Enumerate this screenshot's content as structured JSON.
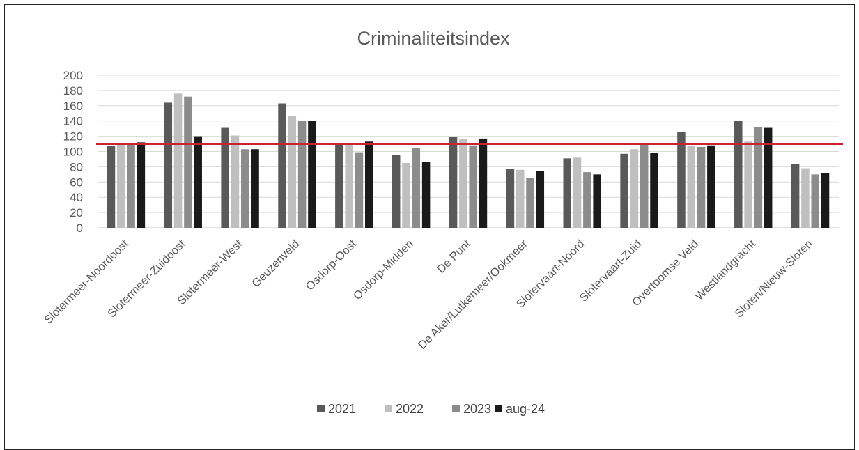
{
  "chart_data": {
    "type": "bar",
    "title": "Criminaliteitsindex",
    "xlabel": "",
    "ylabel": "",
    "ylim": [
      0,
      200
    ],
    "yticks": [
      0,
      20,
      40,
      60,
      80,
      100,
      120,
      140,
      160,
      180,
      200
    ],
    "grid": true,
    "legend_position": "bottom",
    "categories": [
      "Slotermeer-Noordoost",
      "Slotermeer-Zuidoost",
      "Slotermeer-West",
      "Geuzenveld",
      "Osdorp-Oost",
      "Osdorp-Midden",
      "De Punt",
      "De Aker/Lutkemeer/Ookmeer",
      "Slotervaart-Noord",
      "Slotervaart-Zuid",
      "Overtoomse Veld",
      "Westlandgracht",
      "Sloten/Nieuw-Sloten"
    ],
    "series": [
      {
        "name": "2021",
        "color": "#595959",
        "values": [
          107,
          164,
          131,
          163,
          109,
          95,
          119,
          77,
          91,
          97,
          126,
          140,
          84
        ]
      },
      {
        "name": "2022",
        "color": "#bfbfbf",
        "values": [
          110,
          176,
          121,
          147,
          109,
          85,
          116,
          76,
          92,
          103,
          107,
          113,
          78
        ]
      },
      {
        "name": "2023",
        "color": "#8c8c8c",
        "values": [
          111,
          172,
          103,
          140,
          99,
          105,
          108,
          65,
          73,
          109,
          106,
          132,
          70
        ]
      },
      {
        "name": "aug-24",
        "color": "#1a1a1a",
        "values": [
          112,
          120,
          103,
          140,
          113,
          86,
          117,
          74,
          70,
          98,
          108,
          131,
          72
        ]
      }
    ],
    "reference_line": {
      "value": 110,
      "color": "#d0202e"
    }
  }
}
